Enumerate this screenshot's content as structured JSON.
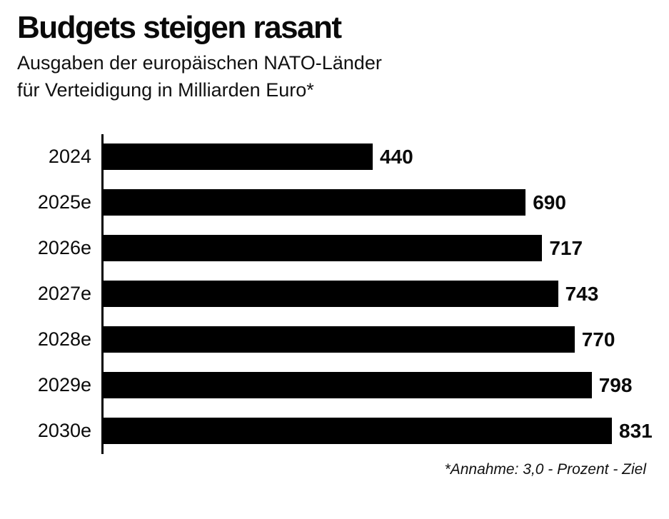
{
  "chart_data": {
    "type": "bar",
    "orientation": "horizontal",
    "title": "Budgets steigen rasant",
    "subtitle": "Ausgaben der europäischen NATO-Länder\nfür Verteidigung in Milliarden Euro*",
    "footnote": "*Annahme: 3,0 - Prozent - Ziel",
    "categories": [
      "2024",
      "2025e",
      "2026e",
      "2027e",
      "2028e",
      "2029e",
      "2030e"
    ],
    "values": [
      440,
      690,
      717,
      743,
      770,
      798,
      831
    ],
    "xlim": [
      0,
      831
    ],
    "bar_color": "#000000",
    "background_color": "#ffffff",
    "value_labels": true,
    "grid": false,
    "legend": false,
    "xlabel": "",
    "ylabel": ""
  }
}
